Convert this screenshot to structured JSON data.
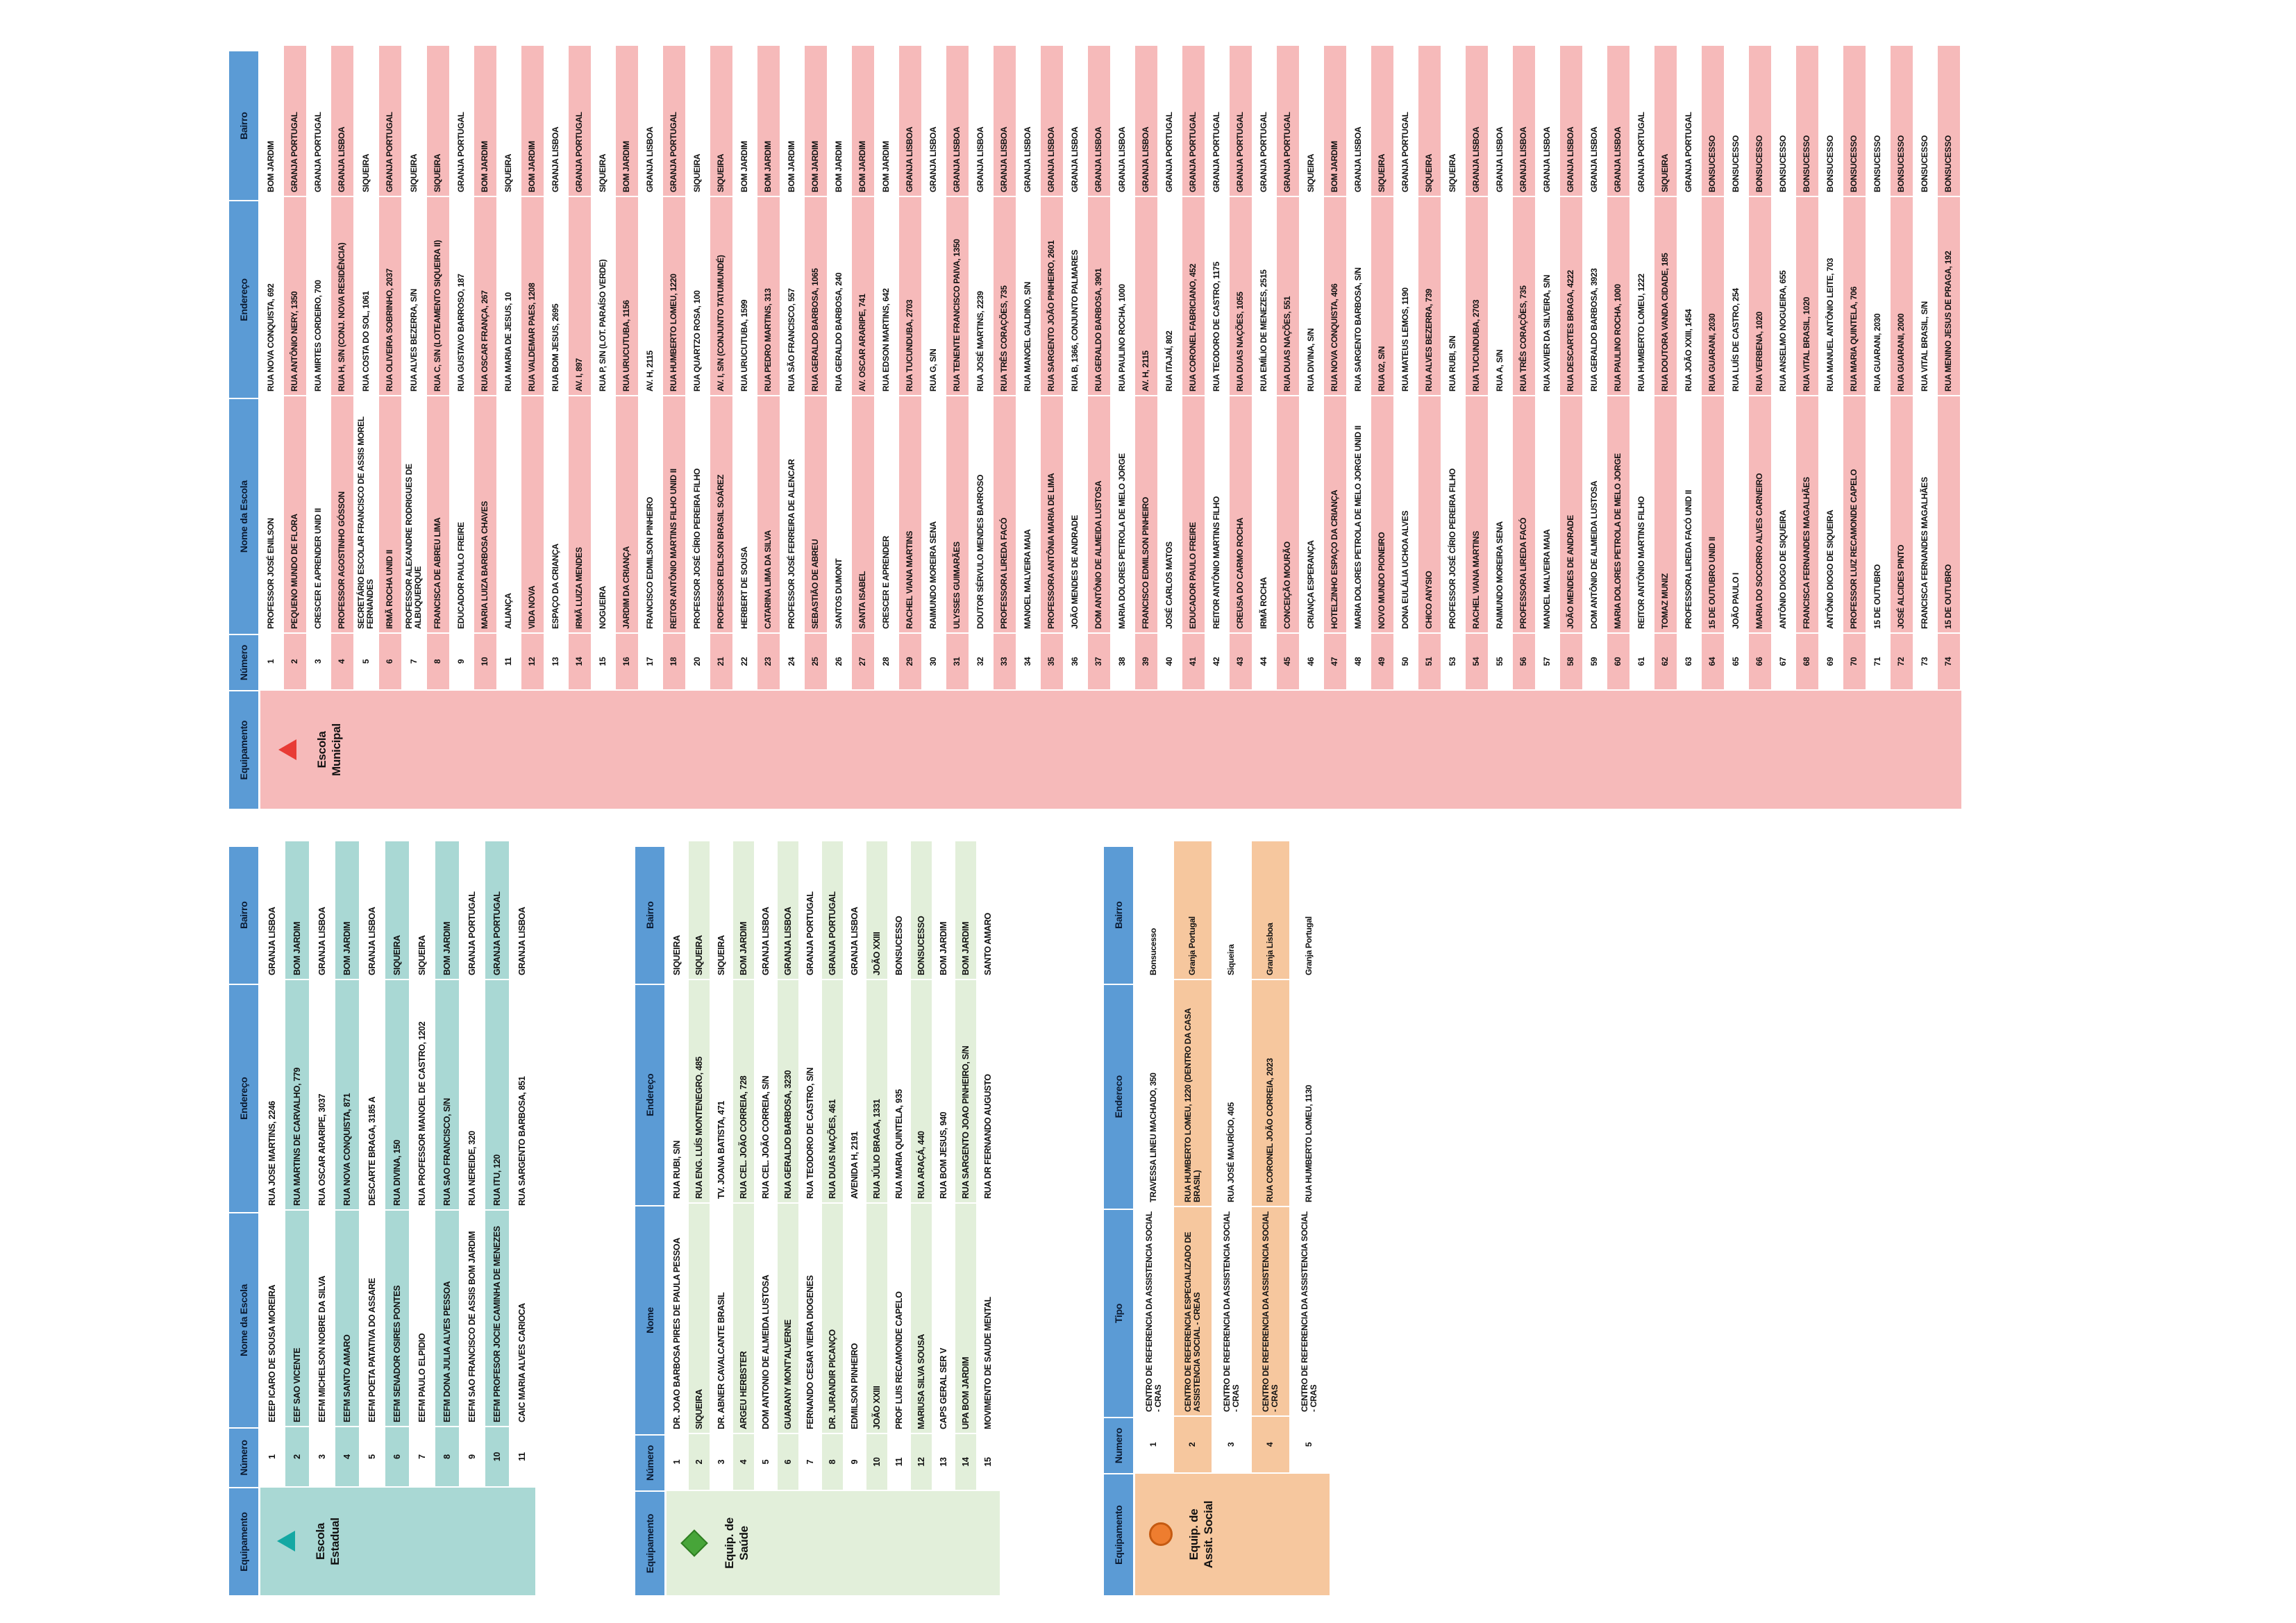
{
  "page": {
    "background": "#ffffff",
    "header_color": "#5b9bd5"
  },
  "tables": {
    "municipal": {
      "label": "Escola Municipal",
      "icon": "triangle-icon",
      "icon_color": "#e83b35",
      "stripe_color": "#f6baba",
      "headers": [
        "Equipamento",
        "Número",
        "Nome da Escola",
        "Endereço",
        "Bairro"
      ],
      "rows": [
        {
          "n": "1",
          "nome": "PROFESSOR JOSÉ ENILSON",
          "end": "RUA NOVA CONQUISTA, 692",
          "bai": "BOM JARDIM"
        },
        {
          "n": "2",
          "nome": "PEQUENO MUNDO DE FLORA",
          "end": "RUA ANTÔNIO NERY, 1350",
          "bai": "GRANJA PORTUGAL"
        },
        {
          "n": "3",
          "nome": "CRESCER E APRENDER UNID II",
          "end": "RUA MIRTES CORDEIRO, 700",
          "bai": "GRANJA PORTUGAL"
        },
        {
          "n": "4",
          "nome": "PROFESSOR AGOSTINHO GÓSSON",
          "end": "RUA H, S/N (CONJ. NOVA RESIDÊNCIA)",
          "bai": "GRANJA LISBOA"
        },
        {
          "n": "5",
          "nome": "SECRETÁRIO ESCOLAR FRANCISCO DE ASSIS MOREL FERNANDES",
          "end": "RUA COSTA DO SOL, 1061",
          "bai": "SIQUEIRA"
        },
        {
          "n": "6",
          "nome": "IRMÃ ROCHA UNID II",
          "end": "RUA OLIVEIRA SOBRINHO, 2037",
          "bai": "GRANJA PORTUGAL"
        },
        {
          "n": "7",
          "nome": "PROFESSOR ALEXANDRE RODRIGUES DE ALBUQUERQUE",
          "end": "RUA ALVES BEZERRA, S/N",
          "bai": "SIQUEIRA"
        },
        {
          "n": "8",
          "nome": "FRANCISCA DE ABREU LIMA",
          "end": "RUA C, S/N (LOTEAMENTO SIQUEIRA II)",
          "bai": "SIQUEIRA"
        },
        {
          "n": "9",
          "nome": "EDUCADOR PAULO FREIRE",
          "end": "RUA GUSTAVO BARROSO, 187",
          "bai": "GRANJA PORTUGAL"
        },
        {
          "n": "10",
          "nome": "MARIA LUIZA BARBOSA CHAVES",
          "end": "RUA OSCAR FRANÇA, 267",
          "bai": "BOM JARDIM"
        },
        {
          "n": "11",
          "nome": "ALIANÇA",
          "end": "RUA MARIA DE JESUS, 10",
          "bai": "SIQUEIRA"
        },
        {
          "n": "12",
          "nome": "VIDA NOVA",
          "end": "RUA VALDEMAR PAES, 1208",
          "bai": "BOM JARDIM"
        },
        {
          "n": "13",
          "nome": "ESPAÇO DA CRIANÇA",
          "end": "RUA BOM JESUS, 2695",
          "bai": "GRANJA LISBOA"
        },
        {
          "n": "14",
          "nome": "IRMÃ LUIZA MENDES",
          "end": "AV. I, 897",
          "bai": "GRANJA PORTUGAL"
        },
        {
          "n": "15",
          "nome": "NOGUEIRA",
          "end": "RUA P, S/N (LOT. PARAÍSO VERDE)",
          "bai": "SIQUEIRA"
        },
        {
          "n": "16",
          "nome": "JARDIM DA CRIANÇA",
          "end": "RUA URUCUTUBA, 1156",
          "bai": "BOM JARDIM"
        },
        {
          "n": "17",
          "nome": "FRANCISCO EDMILSON PINHEIRO",
          "end": "AV. H, 2115",
          "bai": "GRANJA LISBOA"
        },
        {
          "n": "18",
          "nome": "REITOR ANTÔNIO MARTINS FILHO UNID II",
          "end": "RUA HUMBERTO LOMEU, 1220",
          "bai": "GRANJA PORTUGAL"
        },
        {
          "n": "20",
          "nome": "PROFESSOR JOSÉ CÍRIO PEREIRA FILHO",
          "end": "RUA QUARTZO ROSA, 100",
          "bai": "SIQUEIRA"
        },
        {
          "n": "21",
          "nome": "PROFESSOR EDILSON BRASIL SOÁREZ",
          "end": "AV. I, S/N (CONJUNTO TATUMUNDÉ)",
          "bai": "SIQUEIRA"
        },
        {
          "n": "22",
          "nome": "HERBERT DE SOUSA",
          "end": "RUA URUCUTUBA, 1599",
          "bai": "BOM JARDIM"
        },
        {
          "n": "23",
          "nome": "CATARINA LIMA DA SILVA",
          "end": "RUA PEDRO MARTINS, 313",
          "bai": "BOM JARDIM"
        },
        {
          "n": "24",
          "nome": "PROFESSOR JOSÉ FERREIRA DE ALENCAR",
          "end": "RUA SÃO FRANCISCO, 557",
          "bai": "BOM JARDIM"
        },
        {
          "n": "25",
          "nome": "SEBASTIÃO DE ABREU",
          "end": "RUA GERALDO BARBOSA, 1065",
          "bai": "BOM JARDIM"
        },
        {
          "n": "26",
          "nome": "SANTOS DUMONT",
          "end": "RUA GERALDO BARBOSA, 240",
          "bai": "BOM JARDIM"
        },
        {
          "n": "27",
          "nome": "SANTA ISABEL",
          "end": "AV. OSCAR ARARIPE, 741",
          "bai": "BOM JARDIM"
        },
        {
          "n": "28",
          "nome": "CRESCER E APRENDER",
          "end": "RUA EDSON MARTINS, 642",
          "bai": "BOM JARDIM"
        },
        {
          "n": "29",
          "nome": "RACHEL VIANA MARTINS",
          "end": "RUA TUCUNDUBA, 2703",
          "bai": "GRANJA LISBOA"
        },
        {
          "n": "30",
          "nome": "RAIMUNDO MOREIRA SENA",
          "end": "RUA G, S/N",
          "bai": "GRANJA LISBOA"
        },
        {
          "n": "31",
          "nome": "ULYSSES GUIMARÃES",
          "end": "RUA TENENTE FRANCISCO PAIVA, 1350",
          "bai": "GRANJA LISBOA"
        },
        {
          "n": "32",
          "nome": "DOUTOR SÉRVULO MENDES BARROSO",
          "end": "RUA JOSÉ MARTINS, 2239",
          "bai": "GRANJA LISBOA"
        },
        {
          "n": "33",
          "nome": "PROFESSORA LIREDA FACÓ",
          "end": "RUA TRÊS CORAÇÕES, 735",
          "bai": "GRANJA LISBOA"
        },
        {
          "n": "34",
          "nome": "MANOEL MALVEIRA MAIA",
          "end": "RUA MANOEL GALDINO, S/N",
          "bai": "GRANJA LISBOA"
        },
        {
          "n": "35",
          "nome": "PROFESSORA ANTÔNIA MARIA DE LIMA",
          "end": "RUA SARGENTO JOÃO PINHEIRO, 2601",
          "bai": "GRANJA LISBOA"
        },
        {
          "n": "36",
          "nome": "JOÃO MENDES DE ANDRADE",
          "end": "RUA B, 1366, CONJUNTO PALMARES",
          "bai": "GRANJA LISBOA"
        },
        {
          "n": "37",
          "nome": "DOM ANTÔNIO DE ALMEIDA LUSTOSA",
          "end": "RUA GERALDO BARBOSA, 3901",
          "bai": "GRANJA LISBOA"
        },
        {
          "n": "38",
          "nome": "MARIA DOLORES PETROLA DE MELO JORGE",
          "end": "RUA PAULINO ROCHA, 1000",
          "bai": "GRANJA LISBOA"
        },
        {
          "n": "39",
          "nome": "FRANCISCO EDMILSON PINHEIRO",
          "end": "AV. H, 2115",
          "bai": "GRANJA LISBOA"
        },
        {
          "n": "40",
          "nome": "JOSÉ CARLOS MATOS",
          "end": "RUA ITAJAÍ, 802",
          "bai": "GRANJA PORTUGAL"
        },
        {
          "n": "41",
          "nome": "EDUCADOR PAULO FREIRE",
          "end": "RUA CORONEL FABRICIANO, 452",
          "bai": "GRANJA PORTUGAL"
        },
        {
          "n": "42",
          "nome": "REITOR ANTÔNIO MARTINS FILHO",
          "end": "RUA TEODORO DE CASTRO, 1175",
          "bai": "GRANJA PORTUGAL"
        },
        {
          "n": "43",
          "nome": "CREUSA DO CARMO ROCHA",
          "end": "RUA DUAS NAÇÕES, 1055",
          "bai": "GRANJA PORTUGAL"
        },
        {
          "n": "44",
          "nome": "IRMÃ ROCHA",
          "end": "RUA EMÍLIO DE MENEZES, 2515",
          "bai": "GRANJA PORTUGAL"
        },
        {
          "n": "45",
          "nome": "CONCEIÇÃO MOURÃO",
          "end": "RUA DUAS NAÇÕES, 551",
          "bai": "GRANJA PORTUGAL"
        },
        {
          "n": "46",
          "nome": "CRIANÇA ESPERANÇA",
          "end": "RUA DIVINA, S/N",
          "bai": "SIQUEIRA"
        },
        {
          "n": "47",
          "nome": "HOTELZINHO ESPAÇO DA CRIANÇA",
          "end": "RUA NOVA CONQUISTA, 406",
          "bai": "BOM JARDIM"
        },
        {
          "n": "48",
          "nome": "MARIA DOLORES PETROLA DE MELO JORGE UNID II",
          "end": "RUA SARGENTO BARBOSA, S/N",
          "bai": "GRANJA LISBOA"
        },
        {
          "n": "49",
          "nome": "NOVO MUNDO PIONEIRO",
          "end": "RUA 02, S/N",
          "bai": "SIQUEIRA"
        },
        {
          "n": "50",
          "nome": "DONA EULÁLIA UCHOA ALVES",
          "end": "RUA MATEUS LEMOS, 1190",
          "bai": "GRANJA PORTUGAL"
        },
        {
          "n": "51",
          "nome": "CHICO ANYSIO",
          "end": "RUA ALVES BEZERRA, 739",
          "bai": "SIQUEIRA"
        },
        {
          "n": "53",
          "nome": "PROFESSOR JOSÉ CÍRIO PEREIRA FILHO",
          "end": "RUA RUBI, S/N",
          "bai": "SIQUEIRA"
        },
        {
          "n": "54",
          "nome": "RACHEL VIANA MARTINS",
          "end": "RUA TUCUNDUBA, 2703",
          "bai": "GRANJA LISBOA"
        },
        {
          "n": "55",
          "nome": "RAIMUNDO MOREIRA SENA",
          "end": "RUA A, S/N",
          "bai": "GRANJA LISBOA"
        },
        {
          "n": "56",
          "nome": "PROFESSORA LIREDA FACÓ",
          "end": "RUA TRÊS CORAÇÕES, 735",
          "bai": "GRANJA LISBOA"
        },
        {
          "n": "57",
          "nome": "MANOEL MALVEIRA MAIA",
          "end": "RUA XAVIER DA SILVEIRA, S/N",
          "bai": "GRANJA LISBOA"
        },
        {
          "n": "58",
          "nome": "JOÃO MENDES DE ANDRADE",
          "end": "RUA DESCARTES BRAGA, 4222",
          "bai": "GRANJA LISBOA"
        },
        {
          "n": "59",
          "nome": "DOM ANTÔNIO DE ALMEIDA LUSTOSA",
          "end": "RUA GERALDO BARBOSA, 3923",
          "bai": "GRANJA LISBOA"
        },
        {
          "n": "60",
          "nome": "MARIA DOLORES PETROLA DE MELO JORGE",
          "end": "RUA PAULINO ROCHA, 1000",
          "bai": "GRANJA LISBOA"
        },
        {
          "n": "61",
          "nome": "REITOR ANTÔNIO MARTINS FILHO",
          "end": "RUA HUMBERTO LOMEU, 1222",
          "bai": "GRANJA PORTUGAL"
        },
        {
          "n": "62",
          "nome": "TOMAZ MUNIZ",
          "end": "RUA DOUTORA VANDA CIDADE, 185",
          "bai": "SIQUEIRA"
        },
        {
          "n": "63",
          "nome": "PROFESSORA LIREDA FACÓ UNID II",
          "end": "RUA JOÃO XXIII, 1454",
          "bai": "GRANJA PORTUGAL"
        },
        {
          "n": "64",
          "nome": "15 DE OUTUBRO UNID II",
          "end": "RUA GUARANI, 2030",
          "bai": "BONSUCESSO"
        },
        {
          "n": "65",
          "nome": "JOÃO PAULO I",
          "end": "RUA LUÍS DE CASTRO, 254",
          "bai": "BONSUCESSO"
        },
        {
          "n": "66",
          "nome": "MARIA DO SOCORRO ALVES CARNEIRO",
          "end": "RUA VERBENA, 1020",
          "bai": "BONSUCESSO"
        },
        {
          "n": "67",
          "nome": "ANTÔNIO DIOGO DE SIQUEIRA",
          "end": "RUA ANSELMO NOGUEIRA, 655",
          "bai": "BONSUCESSO"
        },
        {
          "n": "68",
          "nome": "FRANCISCA FERNANDES MAGALHÃES",
          "end": "RUA VITAL BRASIL, 1020",
          "bai": "BONSUCESSO"
        },
        {
          "n": "69",
          "nome": "ANTÔNIO DIOGO DE SIQUEIRA",
          "end": "RUA MANUEL ANTÔNIO LEITE, 703",
          "bai": "BONSUCESSO"
        },
        {
          "n": "70",
          "nome": "PROFESSOR LUIZ RECAMONDE CAPELO",
          "end": "RUA MARIA QUINTELA, 706",
          "bai": "BONSUCESSO"
        },
        {
          "n": "71",
          "nome": "15 DE OUTUBRO",
          "end": "RUA GUARANI, 2030",
          "bai": "BONSUCESSO"
        },
        {
          "n": "72",
          "nome": "JOSÉ ALCIDES PINTO",
          "end": "RUA GUARANI, 2000",
          "bai": "BONSUCESSO"
        },
        {
          "n": "73",
          "nome": "FRANCISCA FERNANDES MAGALHÃES",
          "end": "RUA VITAL BRASIL, S/N",
          "bai": "BONSUCESSO"
        },
        {
          "n": "74",
          "nome": "15 DE OUTUBRO",
          "end": "RUA MENINO JESUS DE PRAGA, 192",
          "bai": "BONSUCESSO"
        }
      ]
    },
    "estadual": {
      "label": "Escola Estadual",
      "icon": "triangle-icon",
      "icon_color": "#14a8a3",
      "stripe_color": "#a9d8d4",
      "headers": [
        "Equipamento",
        "Número",
        "Nome da Escola",
        "Endereço",
        "Bairro"
      ],
      "rows": [
        {
          "n": "1",
          "nome": "EEEP ICARO DE SOUSA MOREIRA",
          "end": "RUA JOSE MARTINS, 2246",
          "bai": "GRANJA LISBOA"
        },
        {
          "n": "2",
          "nome": "EEF SAO VICENTE",
          "end": "RUA MARTINS DE CARVALHO, 779",
          "bai": "BOM JARDIM"
        },
        {
          "n": "3",
          "nome": "EEFM MICHELSON NOBRE DA SILVA",
          "end": "RUA OSCAR ARARIPE, 3037",
          "bai": "GRANJA LISBOA"
        },
        {
          "n": "4",
          "nome": "EEFM SANTO AMARO",
          "end": "RUA NOVA CONQUISTA, 871",
          "bai": "BOM JARDIM"
        },
        {
          "n": "5",
          "nome": "EEFM POETA PATATIVA DO ASSARE",
          "end": "DESCARTE BRAGA, 3185 A",
          "bai": "GRANJA LISBOA"
        },
        {
          "n": "6",
          "nome": "EEFM SENADOR OSIRES PONTES",
          "end": "RUA DIVINA, 150",
          "bai": "SIQUEIRA"
        },
        {
          "n": "7",
          "nome": "EEFM PAULO ELPIDIO",
          "end": "RUA PROFESSOR MANOEL DE CASTRO, 1202",
          "bai": "SIQUEIRA"
        },
        {
          "n": "8",
          "nome": "EEFM DONA JULIA ALVES PESSOA",
          "end": "RUA SAO FRANCISCO, S/N",
          "bai": "BOM JARDIM"
        },
        {
          "n": "9",
          "nome": "EEFM SAO FRANCISCO DE ASSIS BOM JARDIM",
          "end": "RUA NEREIDE, 320",
          "bai": "GRANJA PORTUGAL"
        },
        {
          "n": "10",
          "nome": "EEFM PROFESOR JOCIE CAMINHA DE MENEZES",
          "end": "RUA ITU, 120",
          "bai": "GRANJA PORTUGAL"
        },
        {
          "n": "11",
          "nome": "CAIC MARIA ALVES CARIOCA",
          "end": "RUA SARGENTO BARBOSA, 851",
          "bai": "GRANJA LISBOA"
        }
      ]
    },
    "saude": {
      "label": "Equip. de Saúde",
      "icon": "diamond-icon",
      "icon_color": "#47a539",
      "stripe_color": "#e2efda",
      "headers": [
        "Equipamento",
        "Número",
        "Nome",
        "Endereço",
        "Bairro"
      ],
      "rows": [
        {
          "n": "1",
          "nome": "DR. JOAO BARBOSA PIRES DE PAULA PESSOA",
          "end": "RUA RUBI, S/N",
          "bai": "SIQUEIRA"
        },
        {
          "n": "2",
          "nome": "SIQUEIRA",
          "end": "RUA ENG. LUÍS MONTENEGRO, 485",
          "bai": "SIQUEIRA"
        },
        {
          "n": "3",
          "nome": "DR. ABNER CAVALCANTE BRASIL",
          "end": "TV. JOANA BATISTA, 471",
          "bai": "SIQUEIRA"
        },
        {
          "n": "4",
          "nome": "ARGEU HERBSTER",
          "end": "RUA CEL. JOÃO CORREIA, 728",
          "bai": "BOM JARDIM"
        },
        {
          "n": "5",
          "nome": "DOM ANTONIO DE ALMEIDA LUSTOSA",
          "end": "RUA CEL. JOÃO CORREIA, S/N",
          "bai": "GRANJA LISBOA"
        },
        {
          "n": "6",
          "nome": "GUARANY MONT'ALVERNE",
          "end": "RUA GERALDO BARBOSA, 3230",
          "bai": "GRANJA LISBOA"
        },
        {
          "n": "7",
          "nome": "FERNANDO CESAR VIEIRA DIOGENES",
          "end": "RUA TEODORO DE CASTRO, S/N",
          "bai": "GRANJA PORTUGAL"
        },
        {
          "n": "8",
          "nome": "DR. JURANDIR PICANÇO",
          "end": "RUA DUAS NAÇÕES, 461",
          "bai": "GRANJA PORTUGAL"
        },
        {
          "n": "9",
          "nome": "EDMILSON PINHEIRO",
          "end": "AVENIDA H, 2191",
          "bai": "GRANJA LISBOA"
        },
        {
          "n": "10",
          "nome": "JOÃO XXIII",
          "end": "RUA JÚLIO BRAGA, 1331",
          "bai": "JOÃO XXIII"
        },
        {
          "n": "11",
          "nome": "PROF LUIS RECAMONDE CAPELO",
          "end": "RUA MARIA QUINTELA, 935",
          "bai": "BONSUCESSO"
        },
        {
          "n": "12",
          "nome": "MARIUSA SILVA SOUSA",
          "end": "RUA ARAÇÁ, 440",
          "bai": "BONSUCESSO"
        },
        {
          "n": "13",
          "nome": "CAPS GERAL SER V",
          "end": "RUA BOM JESUS, 940",
          "bai": "BOM JARDIM"
        },
        {
          "n": "14",
          "nome": "UPA BOM JARDIM",
          "end": "RUA SARGENTO JOAO PINHEIRO, S/N",
          "bai": "BOM JARDIM"
        },
        {
          "n": "15",
          "nome": "MOVIMENTO DE SAUDE MENTAL",
          "end": "RUA DR FERNANDO AUGUSTO",
          "bai": "SANTO AMARO"
        }
      ]
    },
    "assistencia": {
      "label": "Equip. de Assit. Social",
      "icon": "circle-icon",
      "icon_color": "#ee7d2f",
      "stripe_color": "#f6c79e",
      "headers": [
        "Equipamento",
        "Numero",
        "Tipo",
        "Endereco",
        "Bairro"
      ],
      "rows": [
        {
          "n": "1",
          "nome": "CENTRO DE REFERENCIA DA ASSISTENCIA SOCIAL - CRAS",
          "end": "TRAVESSA LINEU MACHADO, 350",
          "bai": "Bonsucesso"
        },
        {
          "n": "2",
          "nome": "CENTRO DE REFERENCIA ESPECIALIZADO DE ASSISTENCIA SOCIAL - CREAS",
          "end": "RUA HUMBERTO LOMEU, 1220 (DENTRO DA CASA BRASIL)",
          "bai": "Granja Portugal"
        },
        {
          "n": "3",
          "nome": "CENTRO DE REFERENCIA DA ASSISTENCIA SOCIAL - CRAS",
          "end": "RUA JOSÉ MAURÍCIO, 405",
          "bai": "Siqueira"
        },
        {
          "n": "4",
          "nome": "CENTRO DE REFERENCIA DA ASSISTENCIA SOCIAL - CRAS",
          "end": "RUA CORONEL JOÃO CORREIA, 2023",
          "bai": "Granja Lisboa"
        },
        {
          "n": "5",
          "nome": "CENTRO DE REFERENCIA DA ASSISTENCIA SOCIAL - CRAS",
          "end": "RUA HUMBERTO LOMEU, 1130",
          "bai": "Granja Portugal"
        }
      ]
    }
  }
}
